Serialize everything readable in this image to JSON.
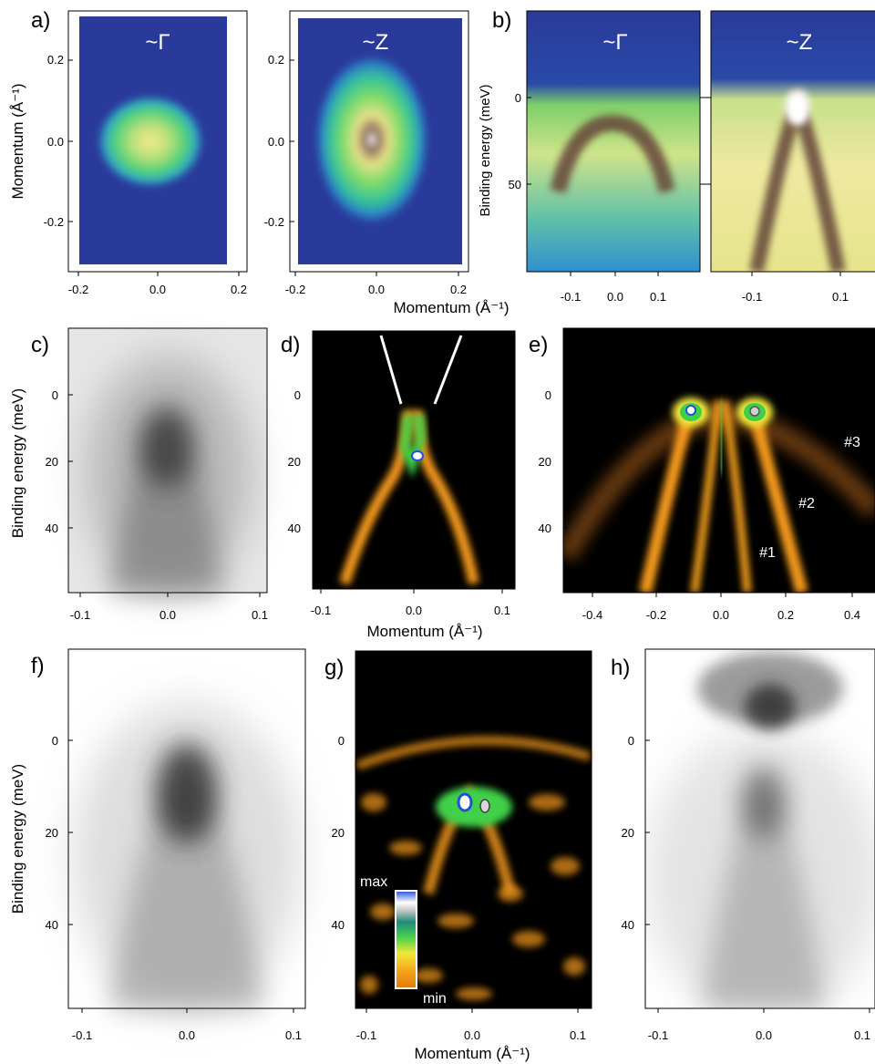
{
  "figure": {
    "xlabel": "Momentum (Å⁻¹)",
    "colorbar": {
      "max_label": "max",
      "min_label": "min"
    },
    "panels": [
      {
        "id": "a1",
        "label": "a)",
        "title": "~Γ",
        "ylabel": "Momentum (Å⁻¹)",
        "xticks": [
          "-0.2",
          "0.0",
          "0.2"
        ],
        "yticks": [
          "0.2",
          "0.0",
          "-0.2"
        ]
      },
      {
        "id": "a2",
        "label": "",
        "title": "~Z",
        "ylabel": "",
        "xticks": [
          "-0.2",
          "0.0",
          "0.2"
        ],
        "yticks": [
          "0.2",
          "0.0",
          "-0.2"
        ]
      },
      {
        "id": "b1",
        "label": "b)",
        "title": "~Γ",
        "ylabel": "Binding energy (meV)",
        "xticks": [
          "-0.1",
          "0.0",
          "0.1"
        ],
        "yticks": [
          "0",
          "50"
        ]
      },
      {
        "id": "b2",
        "label": "",
        "title": "~Z",
        "ylabel": "",
        "xticks": [
          "-0.1",
          "0.1"
        ],
        "yticks": []
      },
      {
        "id": "c",
        "label": "c)",
        "title": "",
        "ylabel": "Binding energy (meV)",
        "xticks": [
          "-0.1",
          "0.0",
          "0.1"
        ],
        "yticks": [
          "0",
          "20",
          "40"
        ]
      },
      {
        "id": "d",
        "label": "d)",
        "title": "",
        "ylabel": "",
        "xticks": [
          "-0.1",
          "0.0",
          "0.1"
        ],
        "yticks": [
          "0",
          "20",
          "40"
        ]
      },
      {
        "id": "e",
        "label": "e)",
        "title": "",
        "ylabel": "",
        "xticks": [
          "-0.4",
          "-0.2",
          "0.0",
          "0.2",
          "0.4"
        ],
        "yticks": [
          "0",
          "20",
          "40"
        ],
        "annotations": [
          "#1",
          "#2",
          "#3"
        ]
      },
      {
        "id": "f",
        "label": "f)",
        "title": "",
        "ylabel": "Binding energy (meV)",
        "xticks": [
          "-0.1",
          "0.0",
          "0.1"
        ],
        "yticks": [
          "0",
          "20",
          "40"
        ]
      },
      {
        "id": "g",
        "label": "g)",
        "title": "",
        "ylabel": "",
        "xticks": [
          "-0.1",
          "0.0",
          "0.1"
        ],
        "yticks": [
          "0",
          "20",
          "40"
        ]
      },
      {
        "id": "h",
        "label": "h)",
        "title": "",
        "ylabel": "",
        "xticks": [
          "-0.1",
          "0.0",
          "0.1"
        ],
        "yticks": [
          "0",
          "20",
          "40"
        ]
      }
    ]
  },
  "colors": {
    "background_blue": "#2a3a9a",
    "green": "#5fd24a",
    "yellow": "#efe98a",
    "brown": "#6b4d3e",
    "orange": "#f59a1a",
    "dark": "#000000",
    "gray_map": "#3a3a3a"
  }
}
